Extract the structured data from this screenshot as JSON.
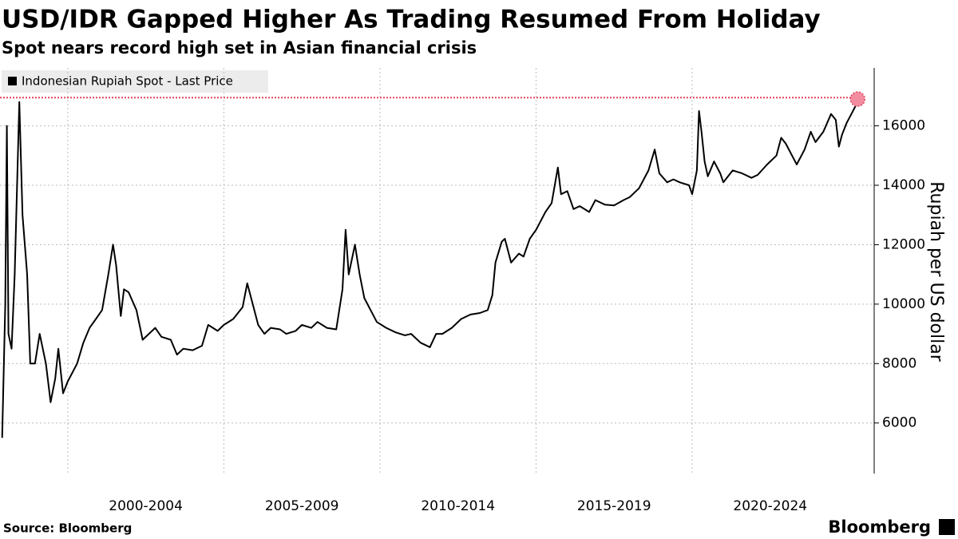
{
  "chart_data": {
    "type": "line",
    "title": "USD/IDR Gapped Higher As Trading Resumed From Holiday",
    "subtitle": "Spot nears record high set in Asian financial crisis",
    "y_label": "Rupiah per US dollar",
    "source": "Source: Bloomberg",
    "brand": "Bloomberg",
    "legend_position": "top-left",
    "grid": true,
    "xlim": [
      1997.83,
      2025.83
    ],
    "xgrid": [
      2000,
      2005,
      2010,
      2015,
      2020
    ],
    "xticks": [
      {
        "value": 2002.5,
        "label": "2000-2004"
      },
      {
        "value": 2007.5,
        "label": "2005-2009"
      },
      {
        "value": 2012.5,
        "label": "2010-2014"
      },
      {
        "value": 2017.5,
        "label": "2015-2019"
      },
      {
        "value": 2022.5,
        "label": "2020-2024"
      }
    ],
    "ylim": [
      4300,
      17950
    ],
    "yticks": [
      6000,
      8000,
      10000,
      12000,
      14000,
      16000
    ],
    "reference_line": {
      "value": 16950,
      "color": "#e0465e"
    },
    "series": [
      {
        "name": "Indonesian Rupiah Spot - Last Price",
        "color": "#000000",
        "x": [
          1997.9,
          1998.0,
          1998.05,
          1998.1,
          1998.2,
          1998.3,
          1998.45,
          1998.55,
          1998.7,
          1998.8,
          1998.95,
          1999.1,
          1999.3,
          1999.45,
          1999.6,
          1999.7,
          1999.85,
          2000.0,
          2000.3,
          2000.5,
          2000.7,
          2000.9,
          2001.1,
          2001.3,
          2001.45,
          2001.55,
          2001.7,
          2001.8,
          2001.95,
          2002.2,
          2002.4,
          2002.6,
          2002.8,
          2003.0,
          2003.3,
          2003.5,
          2003.7,
          2004.0,
          2004.3,
          2004.5,
          2004.8,
          2005.0,
          2005.3,
          2005.6,
          2005.75,
          2005.9,
          2006.1,
          2006.3,
          2006.5,
          2006.8,
          2007.0,
          2007.3,
          2007.5,
          2007.8,
          2008.0,
          2008.3,
          2008.6,
          2008.8,
          2008.9,
          2009.0,
          2009.2,
          2009.35,
          2009.5,
          2009.7,
          2009.9,
          2010.2,
          2010.5,
          2010.8,
          2011.0,
          2011.3,
          2011.6,
          2011.8,
          2012.0,
          2012.3,
          2012.6,
          2012.9,
          2013.2,
          2013.45,
          2013.6,
          2013.7,
          2013.9,
          2014.0,
          2014.2,
          2014.45,
          2014.6,
          2014.8,
          2015.0,
          2015.3,
          2015.5,
          2015.7,
          2015.8,
          2016.0,
          2016.2,
          2016.4,
          2016.7,
          2016.9,
          2017.2,
          2017.5,
          2017.8,
          2018.0,
          2018.3,
          2018.6,
          2018.8,
          2018.95,
          2019.2,
          2019.4,
          2019.6,
          2019.9,
          2020.0,
          2020.15,
          2020.22,
          2020.3,
          2020.4,
          2020.5,
          2020.7,
          2020.9,
          2021.0,
          2021.3,
          2021.6,
          2021.9,
          2022.1,
          2022.4,
          2022.7,
          2022.85,
          2023.0,
          2023.2,
          2023.35,
          2023.6,
          2023.8,
          2023.95,
          2024.2,
          2024.45,
          2024.6,
          2024.7,
          2024.8,
          2024.95,
          2025.1,
          2025.25,
          2025.3
        ],
        "values": [
          5500,
          10000,
          16000,
          9000,
          8500,
          11000,
          16800,
          13000,
          11000,
          8000,
          8000,
          9000,
          8000,
          6700,
          7500,
          8500,
          7000,
          7400,
          8000,
          8700,
          9200,
          9500,
          9800,
          11000,
          12000,
          11300,
          9600,
          10500,
          10400,
          9800,
          8800,
          9000,
          9200,
          8900,
          8800,
          8300,
          8500,
          8450,
          8600,
          9300,
          9100,
          9300,
          9500,
          9900,
          10700,
          10100,
          9300,
          9000,
          9200,
          9150,
          9000,
          9100,
          9300,
          9200,
          9400,
          9200,
          9150,
          10500,
          12500,
          11000,
          12000,
          11000,
          10200,
          9800,
          9400,
          9200,
          9050,
          8950,
          9000,
          8700,
          8550,
          9000,
          9000,
          9200,
          9500,
          9650,
          9700,
          9800,
          10300,
          11400,
          12100,
          12200,
          11400,
          11700,
          11600,
          12200,
          12500,
          13100,
          13400,
          14600,
          13700,
          13800,
          13200,
          13300,
          13100,
          13500,
          13350,
          13320,
          13500,
          13600,
          13900,
          14500,
          15200,
          14400,
          14100,
          14200,
          14100,
          14000,
          13700,
          14500,
          16500,
          15800,
          14800,
          14300,
          14800,
          14400,
          14100,
          14500,
          14400,
          14250,
          14350,
          14700,
          15000,
          15600,
          15400,
          15000,
          14700,
          15200,
          15800,
          15450,
          15800,
          16400,
          16200,
          15300,
          15700,
          16100,
          16400,
          16700,
          16900
        ]
      }
    ]
  }
}
